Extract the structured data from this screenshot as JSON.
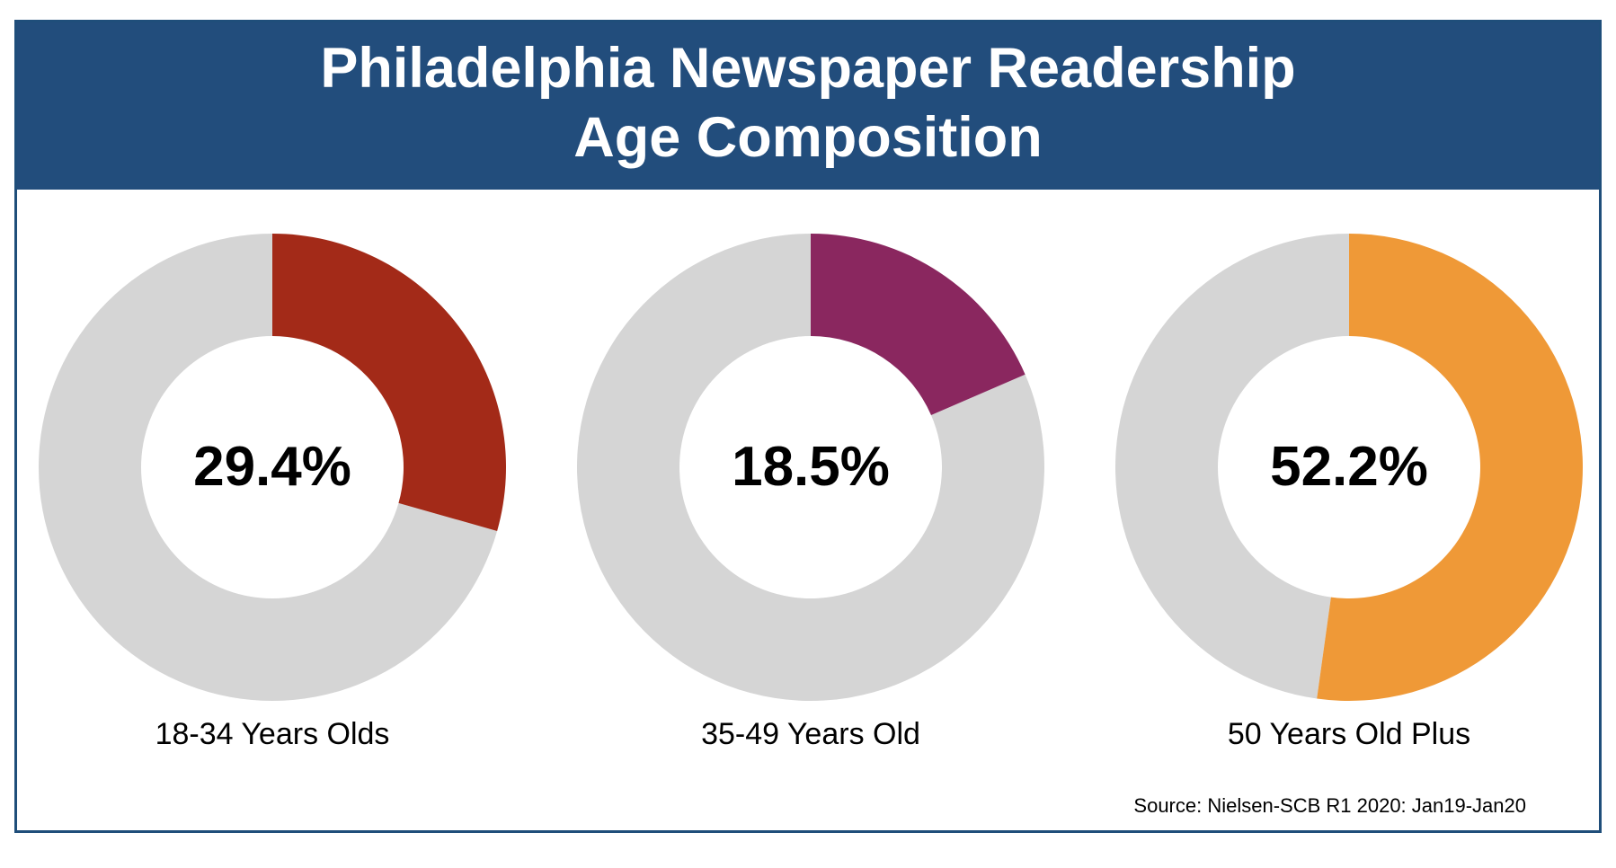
{
  "header": {
    "title_line1": "Philadelphia Newspaper Readership",
    "title_line2": "Age Composition",
    "background_color": "#224d7c"
  },
  "chart_data": {
    "type": "pie",
    "variant": "donut",
    "remainder_color": "#d5d5d5",
    "charts": [
      {
        "category": "18-34 Years Olds",
        "value": 29.4,
        "value_label": "29.4%",
        "color": "#a32a18"
      },
      {
        "category": "35-49 Years Old",
        "value": 18.5,
        "value_label": "18.5%",
        "color": "#8a275f"
      },
      {
        "category": "50 Years Old Plus",
        "value": 52.2,
        "value_label": "52.2%",
        "color": "#ef9937"
      }
    ]
  },
  "footer": {
    "source": "Source: Nielsen-SCB R1 2020: Jan19-Jan20"
  }
}
